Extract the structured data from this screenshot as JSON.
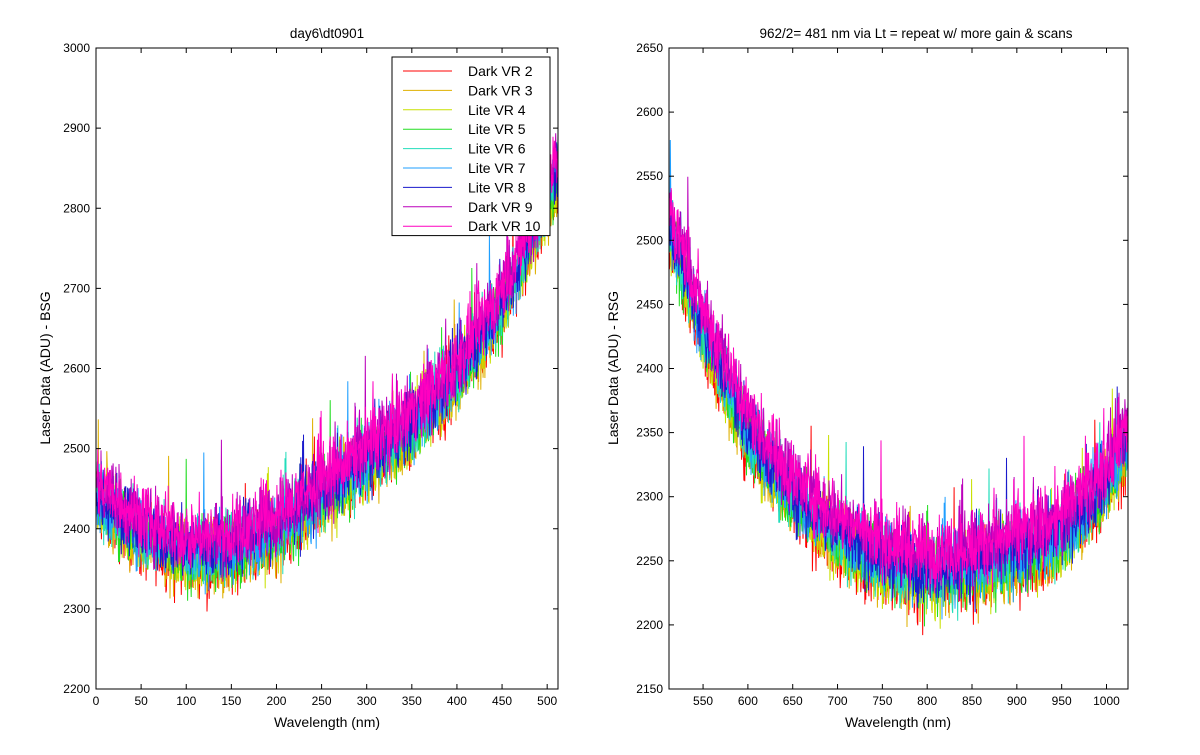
{
  "chart_data": [
    {
      "type": "line",
      "title": "day6\\dt0901",
      "xlabel": "Wavelength (nm)",
      "ylabel": "Laser Data (ADU) - BSG",
      "xlim": [
        0,
        512
      ],
      "ylim": [
        2200,
        3000
      ],
      "xticks": [
        "0",
        "50",
        "100",
        "150",
        "200",
        "250",
        "300",
        "350",
        "400",
        "450",
        "500"
      ],
      "yticks": [
        "2200",
        "2300",
        "2400",
        "2500",
        "2600",
        "2700",
        "2800",
        "2900",
        "3000"
      ],
      "grid": false,
      "legend_position": "top-right",
      "series": [
        {
          "name": "Dark VR 2",
          "color": "#ff0000"
        },
        {
          "name": "Dark VR 3",
          "color": "#dfb000"
        },
        {
          "name": "Lite VR 4",
          "color": "#c8e000"
        },
        {
          "name": "Lite VR 5",
          "color": "#22dd22"
        },
        {
          "name": "Lite VR 6",
          "color": "#22ddbb"
        },
        {
          "name": "Lite VR 7",
          "color": "#1f9fff"
        },
        {
          "name": "Lite VR 8",
          "color": "#1a1acc"
        },
        {
          "name": "Dark VR 9",
          "color": "#bb00bb"
        },
        {
          "name": "Dark VR 10",
          "color": "#ff00c0"
        }
      ],
      "trend_x": [
        0,
        50,
        100,
        150,
        200,
        250,
        300,
        350,
        400,
        450,
        500,
        512
      ],
      "trend_y": [
        2440,
        2395,
        2370,
        2375,
        2400,
        2440,
        2485,
        2530,
        2590,
        2680,
        2810,
        2850
      ]
    },
    {
      "type": "line",
      "title": "962/2= 481 nm via Lt = repeat w/ more gain & scans",
      "xlabel": "Wavelength (nm)",
      "ylabel": "Laser Data (ADU) - RSG",
      "xlim": [
        512,
        1024
      ],
      "ylim": [
        2150,
        2650
      ],
      "xticks": [
        "550",
        "600",
        "650",
        "700",
        "750",
        "800",
        "850",
        "900",
        "950",
        "1000"
      ],
      "yticks": [
        "2150",
        "2200",
        "2250",
        "2300",
        "2350",
        "2400",
        "2450",
        "2500",
        "2550",
        "2600",
        "2650"
      ],
      "grid": false,
      "series": [
        {
          "name": "Dark VR 2",
          "color": "#ff0000"
        },
        {
          "name": "Dark VR 3",
          "color": "#dfb000"
        },
        {
          "name": "Lite VR 4",
          "color": "#c8e000"
        },
        {
          "name": "Lite VR 5",
          "color": "#22dd22"
        },
        {
          "name": "Lite VR 6",
          "color": "#22ddbb"
        },
        {
          "name": "Lite VR 7",
          "color": "#1f9fff"
        },
        {
          "name": "Lite VR 8",
          "color": "#1a1acc"
        },
        {
          "name": "Dark VR 9",
          "color": "#bb00bb"
        },
        {
          "name": "Dark VR 10",
          "color": "#ff00c0"
        }
      ],
      "trend_x": [
        512,
        550,
        600,
        650,
        700,
        750,
        800,
        850,
        900,
        950,
        1000,
        1024
      ],
      "trend_y": [
        2510,
        2430,
        2350,
        2300,
        2270,
        2250,
        2240,
        2245,
        2255,
        2270,
        2310,
        2345
      ]
    }
  ]
}
